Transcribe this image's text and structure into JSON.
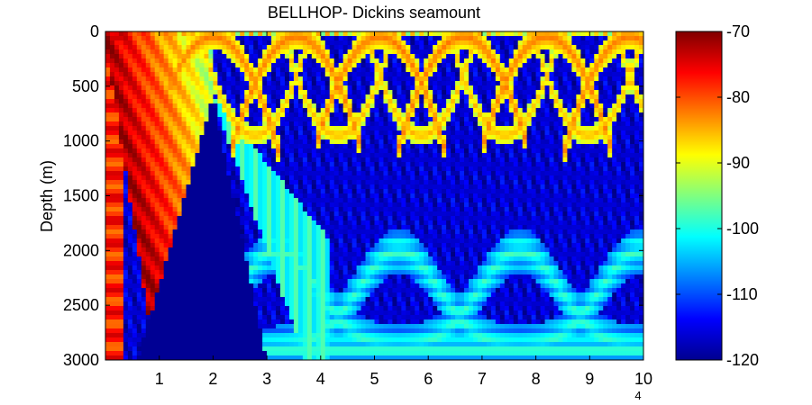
{
  "chart_data": {
    "type": "heatmap",
    "title": "BELLHOP- Dickins seamount",
    "xlabel": "",
    "ylabel": "Depth (m)",
    "x_ticks": [
      1,
      2,
      3,
      4,
      5,
      6,
      7,
      8,
      9,
      10
    ],
    "x_exponent": "4",
    "xlim": [
      0,
      10
    ],
    "y_ticks": [
      0,
      500,
      1000,
      1500,
      2000,
      2500,
      3000
    ],
    "ylim": [
      0,
      3000
    ],
    "y_reversed": true,
    "colormap": "jet",
    "colorbar": {
      "ticks": [
        -70,
        -80,
        -90,
        -100,
        -110,
        -120
      ],
      "range": [
        -120,
        -70
      ]
    },
    "seamount": {
      "x": [
        0.6,
        2.0,
        3.0
      ],
      "depth": [
        3000,
        600,
        3000
      ]
    },
    "description_features": {
      "near_field_level": -72,
      "background_level": -118,
      "surface_bounce_level": -85,
      "convergence_zones_level": -100
    }
  }
}
